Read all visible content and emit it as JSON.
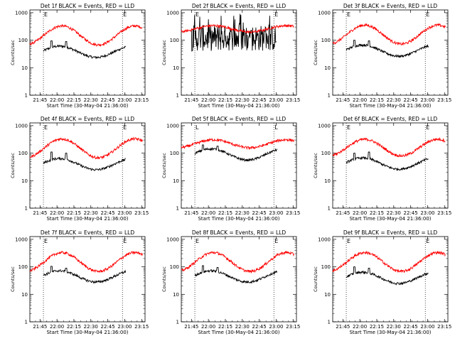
{
  "chart_data": [
    {
      "type": "line",
      "title": "Det 1f BLACK = Events, RED = LLD",
      "xlabel": "Start Time (30-May-04 21:36:00)",
      "ylabel": "Counts/sec",
      "xticks": [
        "21:45",
        "22:00",
        "22:15",
        "22:30",
        "22:45",
        "23:00",
        "23:15"
      ],
      "yticks": [
        "1",
        "10",
        "100",
        "1000"
      ],
      "ylim": [
        1,
        1000
      ],
      "yscale": "log",
      "xlim": [
        "21:36",
        "23:18"
      ],
      "markers": [
        {
          "time": "21:48",
          "label": "E"
        },
        {
          "time": "22:58",
          "label": "E"
        }
      ],
      "series": [
        {
          "color": "#000000",
          "start": "21:48",
          "end": "23:01",
          "base": 38,
          "peaks": [
            [
              "21:55",
              95
            ],
            [
              "22:08",
              90
            ]
          ]
        },
        {
          "color": "#ff0000",
          "start": "21:36",
          "end": "23:16",
          "base": 150,
          "amp": 2.2
        }
      ]
    },
    {
      "type": "line",
      "title": "Det 2f BLACK = Events, RED = LLD",
      "xlabel": "Start Time (30-May-04 21:36:00)",
      "ylabel": "Counts/sec",
      "xticks": [
        "21:45",
        "22:00",
        "22:15",
        "22:30",
        "22:45",
        "23:00",
        "23:15"
      ],
      "yticks": [
        "1",
        "10",
        "100",
        "1000"
      ],
      "ylim": [
        1,
        1000
      ],
      "yscale": "log",
      "xlim": [
        "21:36",
        "23:18"
      ],
      "markers": [
        {
          "time": "21:48",
          "label": "E"
        },
        {
          "time": "22:58",
          "label": "E"
        }
      ],
      "series": [
        {
          "color": "#000000",
          "start": "21:45",
          "end": "23:00",
          "base": 120,
          "noisy": true
        },
        {
          "color": "#ff0000",
          "start": "21:36",
          "end": "23:16",
          "base": 260,
          "amp": 1.3
        }
      ]
    },
    {
      "type": "line",
      "title": "Det 3f BLACK = Events, RED = LLD",
      "xlabel": "Start Time (30-May-04 21:36:00)",
      "ylabel": "Counts/sec",
      "xticks": [
        "21:45",
        "22:00",
        "22:15",
        "22:30",
        "22:45",
        "23:00",
        "23:15"
      ],
      "yticks": [
        "1",
        "10",
        "100",
        "1000"
      ],
      "ylim": [
        1,
        1000
      ],
      "yscale": "log",
      "xlim": [
        "21:36",
        "23:18"
      ],
      "markers": [
        {
          "time": "21:48",
          "label": "E"
        },
        {
          "time": "22:58",
          "label": "E"
        }
      ],
      "series": [
        {
          "color": "#000000",
          "start": "21:48",
          "end": "23:01",
          "base": 42,
          "peaks": [
            [
              "21:55",
              100
            ],
            [
              "22:08",
              95
            ]
          ]
        },
        {
          "color": "#ff0000",
          "start": "21:36",
          "end": "23:16",
          "base": 160,
          "amp": 2.2
        }
      ]
    },
    {
      "type": "line",
      "title": "Det 4f BLACK = Events, RED = LLD",
      "xlabel": "Start Time (30-May-04 21:36:00)",
      "ylabel": "Counts/sec",
      "xticks": [
        "21:45",
        "22:00",
        "22:15",
        "22:30",
        "22:45",
        "23:00",
        "23:15"
      ],
      "yticks": [
        "1",
        "10",
        "100",
        "1000"
      ],
      "ylim": [
        1,
        1000
      ],
      "yscale": "log",
      "xlim": [
        "21:36",
        "23:18"
      ],
      "markers": [
        {
          "time": "21:48",
          "label": "E"
        },
        {
          "time": "22:58",
          "label": "E"
        }
      ],
      "series": [
        {
          "color": "#000000",
          "start": "21:48",
          "end": "23:01",
          "base": 40,
          "peaks": [
            [
              "21:55",
              110
            ],
            [
              "22:08",
              100
            ]
          ]
        },
        {
          "color": "#ff0000",
          "start": "21:36",
          "end": "23:16",
          "base": 150,
          "amp": 2.2
        }
      ]
    },
    {
      "type": "line",
      "title": "Det 5f BLACK = Events, RED = LLD",
      "xlabel": "Start Time (30-May-04 21:36:00)",
      "ylabel": "Counts/sec",
      "xticks": [
        "21:45",
        "22:00",
        "22:15",
        "22:30",
        "22:45",
        "23:00",
        "23:15"
      ],
      "yticks": [
        "1",
        "10",
        "100",
        "1000"
      ],
      "ylim": [
        1,
        1000
      ],
      "yscale": "log",
      "xlim": [
        "21:36",
        "23:18"
      ],
      "markers": [
        {
          "time": "21:48",
          "label": "L"
        },
        {
          "time": "22:58",
          "label": "L"
        }
      ],
      "series": [
        {
          "color": "#000000",
          "start": "21:48",
          "end": "23:01",
          "base": 90,
          "peaks": [
            [
              "21:55",
              200
            ],
            [
              "22:08",
              180
            ]
          ]
        },
        {
          "color": "#ff0000",
          "start": "21:36",
          "end": "23:16",
          "base": 220,
          "amp": 1.4
        }
      ]
    },
    {
      "type": "line",
      "title": "Det 6f BLACK = Events, RED = LLD",
      "xlabel": "Start Time (30-May-04 21:36:00)",
      "ylabel": "Counts/sec",
      "xticks": [
        "21:45",
        "22:00",
        "22:15",
        "22:30",
        "22:45",
        "23:00",
        "23:15"
      ],
      "yticks": [
        "1",
        "10",
        "100",
        "1000"
      ],
      "ylim": [
        1,
        1000
      ],
      "yscale": "log",
      "xlim": [
        "21:36",
        "23:18"
      ],
      "markers": [
        {
          "time": "21:48",
          "label": "E"
        },
        {
          "time": "22:58",
          "label": "E"
        }
      ],
      "series": [
        {
          "color": "#000000",
          "start": "21:48",
          "end": "23:01",
          "base": 42,
          "peaks": [
            [
              "21:55",
              100
            ],
            [
              "22:08",
              110
            ]
          ]
        },
        {
          "color": "#ff0000",
          "start": "21:36",
          "end": "23:16",
          "base": 160,
          "amp": 2.0
        }
      ]
    },
    {
      "type": "line",
      "title": "Det 7f BLACK = Events, RED = LLD",
      "xlabel": "Start Time (30-May-04 21:36:00)",
      "ylabel": "Counts/sec",
      "xticks": [
        "21:45",
        "22:00",
        "22:15",
        "22:30",
        "22:45",
        "23:00",
        "23:15"
      ],
      "yticks": [
        "1",
        "10",
        "100",
        "1000"
      ],
      "ylim": [
        1,
        1000
      ],
      "yscale": "log",
      "xlim": [
        "21:36",
        "23:18"
      ],
      "markers": [
        {
          "time": "21:48",
          "label": "E"
        },
        {
          "time": "22:58",
          "label": "E"
        }
      ],
      "series": [
        {
          "color": "#000000",
          "start": "21:48",
          "end": "23:01",
          "base": 45,
          "peaks": [
            [
              "21:55",
              105
            ],
            [
              "22:08",
              90
            ]
          ]
        },
        {
          "color": "#ff0000",
          "start": "21:36",
          "end": "23:16",
          "base": 150,
          "amp": 2.2
        }
      ]
    },
    {
      "type": "line",
      "title": "Det 8f BLACK = Events, RED = LLD",
      "xlabel": "Start Time (30-May-04 21:36:00)",
      "ylabel": "Counts/sec",
      "xticks": [
        "21:45",
        "22:00",
        "22:15",
        "22:30",
        "22:45",
        "23:00",
        "23:15"
      ],
      "yticks": [
        "1",
        "10",
        "100",
        "1000"
      ],
      "ylim": [
        1,
        1000
      ],
      "yscale": "log",
      "xlim": [
        "21:36",
        "23:18"
      ],
      "markers": [
        {
          "time": "21:48",
          "label": "E"
        },
        {
          "time": "22:58",
          "label": "E"
        }
      ],
      "series": [
        {
          "color": "#000000",
          "start": "21:48",
          "end": "23:01",
          "base": 45,
          "peaks": [
            [
              "21:55",
              110
            ],
            [
              "22:08",
              95
            ]
          ]
        },
        {
          "color": "#ff0000",
          "start": "21:36",
          "end": "23:16",
          "base": 150,
          "amp": 2.2
        }
      ]
    },
    {
      "type": "line",
      "title": "Det 9f BLACK = Events, RED = LLD",
      "xlabel": "Start Time (30-May-04 21:36:00)",
      "ylabel": "Counts/sec",
      "xticks": [
        "21:45",
        "22:00",
        "22:15",
        "22:30",
        "22:45",
        "23:00",
        "23:15"
      ],
      "yticks": [
        "1",
        "10",
        "100",
        "1000"
      ],
      "ylim": [
        1,
        1000
      ],
      "yscale": "log",
      "xlim": [
        "21:36",
        "23:18"
      ],
      "markers": [
        {
          "time": "21:48",
          "label": "E"
        },
        {
          "time": "22:58",
          "label": "E"
        }
      ],
      "series": [
        {
          "color": "#000000",
          "start": "21:48",
          "end": "23:01",
          "base": 40,
          "peaks": [
            [
              "21:55",
              100
            ],
            [
              "22:08",
              90
            ]
          ]
        },
        {
          "color": "#ff0000",
          "start": "21:36",
          "end": "23:16",
          "base": 150,
          "amp": 2.2
        }
      ]
    }
  ]
}
